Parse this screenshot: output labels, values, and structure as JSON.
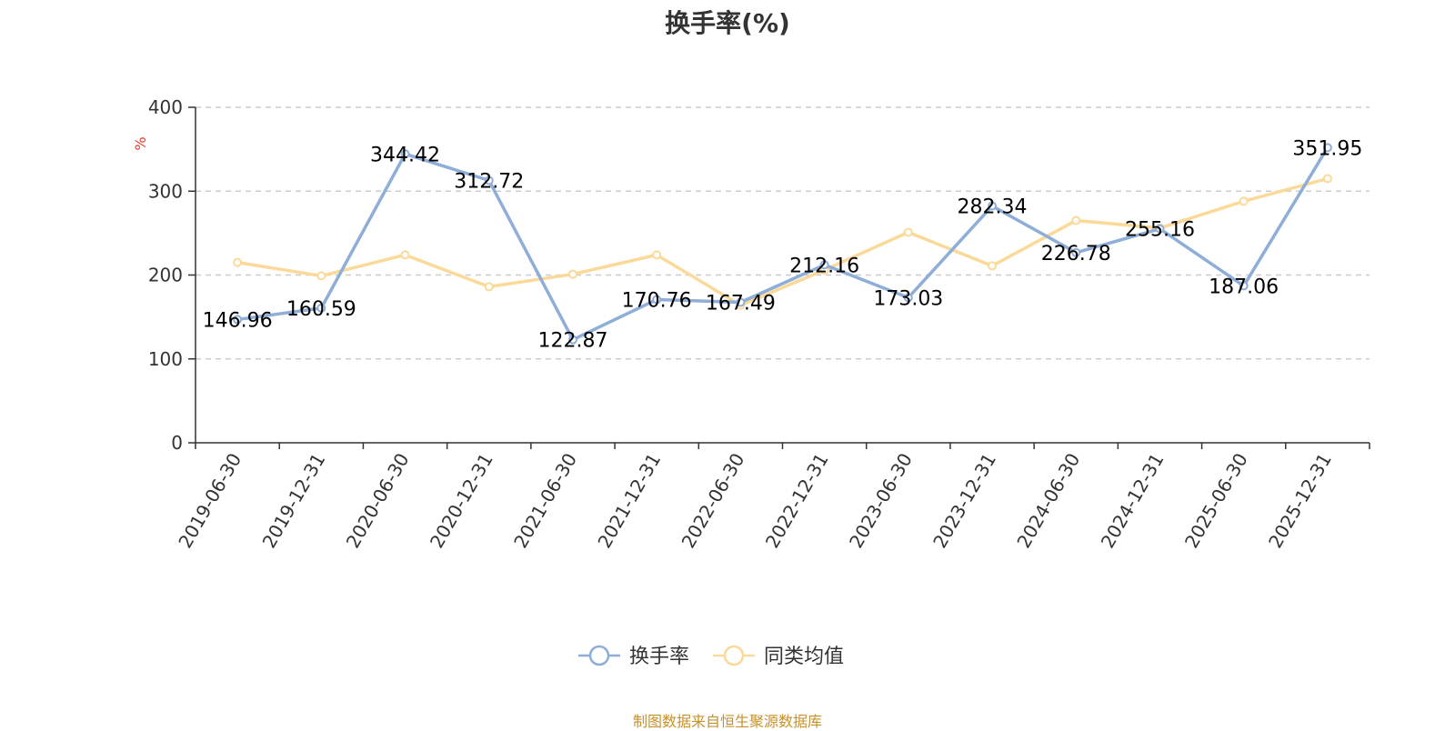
{
  "chart_data": {
    "type": "line",
    "title": "换手率(%)",
    "ylabel": "%",
    "xlabel": "",
    "ylim": [
      0,
      400
    ],
    "yticks": [
      0,
      100,
      200,
      300,
      400
    ],
    "grid": true,
    "legend_position": "bottom",
    "categories": [
      "2019-06-30",
      "2019-12-31",
      "2020-06-30",
      "2020-12-31",
      "2021-06-30",
      "2021-12-31",
      "2022-06-30",
      "2022-12-31",
      "2023-06-30",
      "2023-12-31",
      "2024-06-30",
      "2024-12-31",
      "2025-06-30",
      "2025-12-31"
    ],
    "series": [
      {
        "name": "换手率",
        "color": "#8eaed8",
        "values": [
          146.96,
          160.59,
          344.42,
          312.72,
          122.87,
          170.76,
          167.49,
          212.16,
          173.03,
          282.34,
          226.78,
          255.16,
          187.06,
          351.95
        ],
        "labels": [
          "146.96",
          "160.59",
          "344.42",
          "312.72",
          "122.87",
          "170.76",
          "167.49",
          "212.16",
          "173.03",
          "282.34",
          "226.78",
          "255.16",
          "187.06",
          "351.95"
        ]
      },
      {
        "name": "同类均值",
        "color": "#fad999",
        "values": [
          215,
          199,
          224,
          186,
          201,
          224,
          164,
          206,
          251,
          211,
          265,
          256,
          288,
          315
        ]
      }
    ]
  },
  "source_note": "制图数据来自恒生聚源数据库",
  "colors": {
    "axis": "#333333",
    "grid": "#cccccc",
    "ylabel": "#e8382e",
    "source": "#c7902b"
  }
}
